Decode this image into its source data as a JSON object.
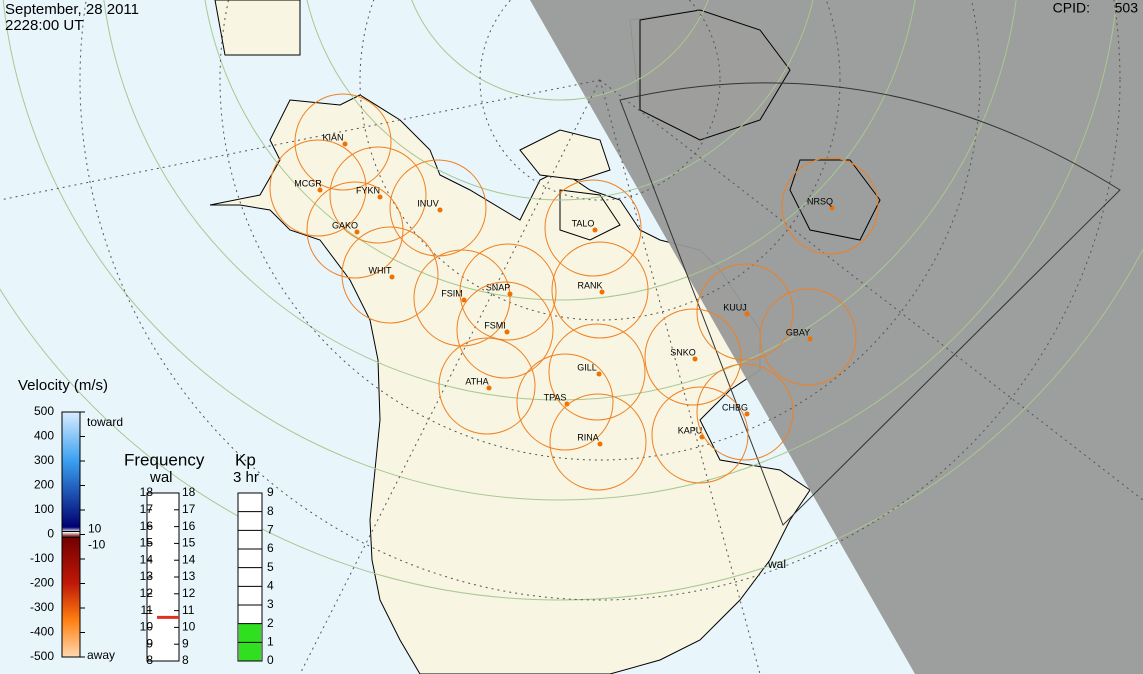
{
  "header": {
    "date": "September, 28 2011",
    "time": "2228:00 UT",
    "cpid_label": "CPID:",
    "cpid": 503
  },
  "stations": [
    "KIAN",
    "MCGR",
    "FYKN",
    "INUV",
    "GAKO",
    "WHIT",
    "FSIM",
    "SNAP",
    "FSMI",
    "RANK",
    "TALO",
    "ATHA",
    "GILL",
    "TPAS",
    "RINA",
    "KAPU",
    "CHBG",
    "SNKO",
    "KUUJ",
    "GBAY",
    "NRSQ"
  ],
  "radar_label": "wal",
  "velocity_scale": {
    "title": "Velocity (m/s)",
    "ticks": [
      500,
      400,
      300,
      200,
      100,
      0,
      -100,
      -200,
      -300,
      -400,
      -500
    ],
    "toward": "toward",
    "away": "away",
    "thresholds": [
      10,
      -10
    ]
  },
  "frequency_scale": {
    "title": "Frequency",
    "subtitle": "wal",
    "ticks": [
      8,
      9,
      10,
      11,
      12,
      13,
      14,
      15,
      16,
      17,
      18
    ],
    "current": 10.6
  },
  "kp_scale": {
    "title": "Kp",
    "subtitle": "3 hr",
    "ticks": [
      0,
      1,
      2,
      3,
      4,
      5,
      6,
      7,
      8,
      9
    ],
    "current": 2
  }
}
